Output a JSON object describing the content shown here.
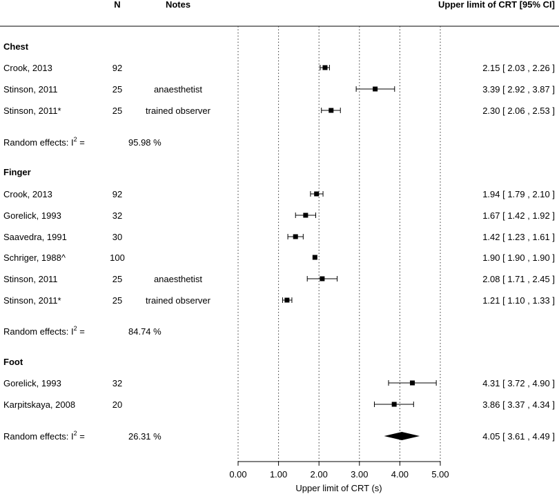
{
  "chart_data": {
    "type": "forest",
    "headers": {
      "n": "N",
      "notes": "Notes",
      "estimate": "Upper limit of CRT [95% CI]"
    },
    "xlabel": "Upper limit of CRT (s)",
    "xlim": [
      0,
      5
    ],
    "xticks": [
      "0.00",
      "1.00",
      "2.00",
      "3.00",
      "4.00",
      "5.00"
    ],
    "xtick_values": [
      0,
      1,
      2,
      3,
      4,
      5
    ],
    "groups": [
      {
        "name": "Chest",
        "studies": [
          {
            "study": "Crook, 2013",
            "n": "92",
            "notes": "",
            "est": 2.15,
            "lo": 2.03,
            "hi": 2.26,
            "ci_text": "2.15 [ 2.03 , 2.26 ]"
          },
          {
            "study": "Stinson, 2011",
            "n": "25",
            "notes": "anaesthetist",
            "est": 3.39,
            "lo": 2.92,
            "hi": 3.87,
            "ci_text": "3.39 [ 2.92 , 3.87 ]"
          },
          {
            "study": "Stinson, 2011*",
            "n": "25",
            "notes": "trained observer",
            "est": 2.3,
            "lo": 2.06,
            "hi": 2.53,
            "ci_text": "2.30 [ 2.06 , 2.53 ]"
          }
        ],
        "random_effects": {
          "label": "Random effects: I",
          "sup": "2",
          "eq": " =",
          "i2": "95.98 %"
        }
      },
      {
        "name": "Finger",
        "studies": [
          {
            "study": "Crook, 2013",
            "n": "92",
            "notes": "",
            "est": 1.94,
            "lo": 1.79,
            "hi": 2.1,
            "ci_text": "1.94 [ 1.79 , 2.10 ]"
          },
          {
            "study": "Gorelick, 1993",
            "n": "32",
            "notes": "",
            "est": 1.67,
            "lo": 1.42,
            "hi": 1.92,
            "ci_text": "1.67 [ 1.42 , 1.92 ]"
          },
          {
            "study": "Saavedra, 1991",
            "n": "30",
            "notes": "",
            "est": 1.42,
            "lo": 1.23,
            "hi": 1.61,
            "ci_text": "1.42 [ 1.23 , 1.61 ]"
          },
          {
            "study": "Schriger, 1988^",
            "n": "100",
            "notes": "",
            "est": 1.9,
            "lo": 1.9,
            "hi": 1.9,
            "ci_text": "1.90 [ 1.90 , 1.90 ]"
          },
          {
            "study": "Stinson, 2011",
            "n": "25",
            "notes": "anaesthetist",
            "est": 2.08,
            "lo": 1.71,
            "hi": 2.45,
            "ci_text": "2.08 [ 1.71 , 2.45 ]"
          },
          {
            "study": "Stinson, 2011*",
            "n": "25",
            "notes": "trained observer",
            "est": 1.21,
            "lo": 1.1,
            "hi": 1.33,
            "ci_text": "1.21 [ 1.10 , 1.33 ]"
          }
        ],
        "random_effects": {
          "label": "Random effects: I",
          "sup": "2",
          "eq": " =",
          "i2": "84.74 %"
        }
      },
      {
        "name": "Foot",
        "studies": [
          {
            "study": "Gorelick, 1993",
            "n": "32",
            "notes": "",
            "est": 4.31,
            "lo": 3.72,
            "hi": 4.9,
            "ci_text": "4.31 [ 3.72 , 4.90 ]"
          },
          {
            "study": "Karpitskaya, 2008",
            "n": "20",
            "notes": "",
            "est": 3.86,
            "lo": 3.37,
            "hi": 4.34,
            "ci_text": "3.86 [ 3.37 , 4.34 ]"
          }
        ],
        "random_effects": {
          "label": "Random effects: I",
          "sup": "2",
          "eq": " =",
          "i2": "26.31 %",
          "pooled": {
            "est": 4.05,
            "lo": 3.61,
            "hi": 4.49,
            "ci_text": "4.05 [ 3.61 , 4.49 ]"
          }
        }
      }
    ]
  }
}
